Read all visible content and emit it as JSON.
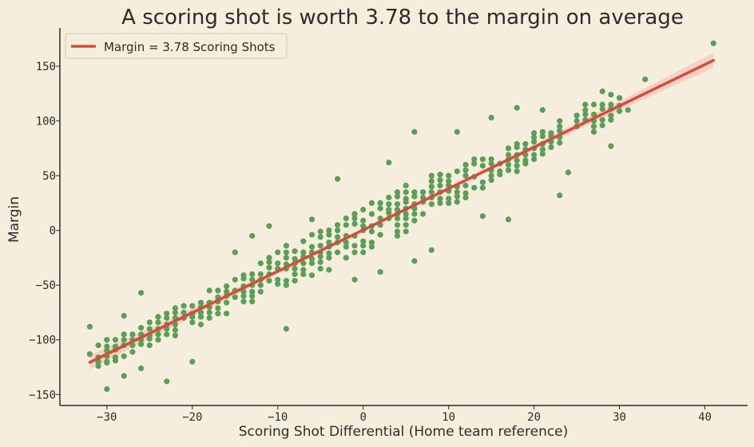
{
  "chart_data": {
    "type": "scatter",
    "title": "A scoring shot is worth 3.78 to the margin on average",
    "xlabel": "Scoring Shot Differential (Home team reference)",
    "ylabel": "Margin",
    "xlim": [
      -35.5,
      45
    ],
    "ylim": [
      -160,
      185
    ],
    "xticks": [
      -30,
      -20,
      -10,
      0,
      10,
      20,
      30,
      40
    ],
    "yticks": [
      -150,
      -100,
      -50,
      0,
      50,
      100,
      150
    ],
    "xtick_labels": [
      "−30",
      "−20",
      "−10",
      "0",
      "10",
      "20",
      "30",
      "40"
    ],
    "ytick_labels": [
      "−150",
      "−100",
      "−50",
      "0",
      "50",
      "100",
      "150"
    ],
    "grid": false,
    "legend": {
      "position": "top-left",
      "entries": [
        "Margin = 3.78 Scoring Shots"
      ]
    },
    "colors": {
      "points": "#5a9e58",
      "fit_line": "#d64b3d",
      "band": "#f2c6b8",
      "axis": "#2b2b2b",
      "background": "#f6eedd"
    },
    "fit": {
      "slope": 3.78,
      "intercept": 0.4,
      "x_range": [
        -32,
        41
      ]
    },
    "points_extremes": [
      [
        -32,
        -88
      ],
      [
        -32,
        -113
      ],
      [
        -30,
        -145
      ],
      [
        -30,
        -120
      ],
      [
        -30,
        -100
      ],
      [
        -28,
        -78
      ],
      [
        -28,
        -133
      ],
      [
        -26,
        -57
      ],
      [
        -26,
        -126
      ],
      [
        -23,
        -138
      ],
      [
        -20,
        -120
      ],
      [
        -15,
        -20
      ],
      [
        -13,
        -5
      ],
      [
        -11,
        4
      ],
      [
        -9,
        -90
      ],
      [
        -6,
        10
      ],
      [
        -3,
        47
      ],
      [
        -1,
        -45
      ],
      [
        2,
        -38
      ],
      [
        3,
        62
      ],
      [
        6,
        90
      ],
      [
        6,
        -28
      ],
      [
        8,
        -18
      ],
      [
        11,
        90
      ],
      [
        14,
        13
      ],
      [
        15,
        103
      ],
      [
        17,
        10
      ],
      [
        18,
        112
      ],
      [
        21,
        110
      ],
      [
        23,
        32
      ],
      [
        24,
        53
      ],
      [
        26,
        115
      ],
      [
        28,
        127
      ],
      [
        29,
        77
      ],
      [
        29,
        124
      ],
      [
        31,
        110
      ],
      [
        33,
        138
      ],
      [
        41,
        171
      ]
    ],
    "cloud": {
      "x_range": [
        -31,
        30
      ],
      "spread": 22,
      "density": 0.9,
      "seed": 20240501
    }
  }
}
